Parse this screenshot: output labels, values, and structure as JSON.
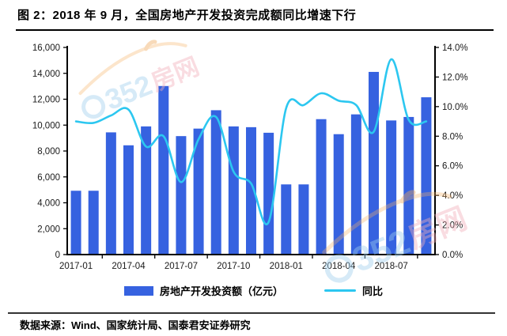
{
  "header": {
    "title": "图 2：2018 年 9 月，全国房地产开发投资完成额同比增速下行"
  },
  "footer": {
    "source": "数据来源：Wind、国家统计局、国泰君安证券研究"
  },
  "watermark": {
    "digits": "352",
    "cn": "房网"
  },
  "colors": {
    "bar": "#3662E0",
    "line": "#2CC7F0",
    "axis": "#000000",
    "tick_text": "#1a1a1a",
    "watermark_orange": "#f6b267",
    "watermark_blue": "#9ecfee",
    "watermark_pink": "#f2aeb8"
  },
  "chart_data": {
    "type": "bar+line",
    "title": "图 2：2018 年 9 月，全国房地产开发投资完成额同比增速下行",
    "categories": [
      "2017-01",
      "2017-02",
      "2017-03",
      "2017-04",
      "2017-05",
      "2017-06",
      "2017-07",
      "2017-08",
      "2017-09",
      "2017-10",
      "2017-11",
      "2017-12",
      "2018-01",
      "2018-02",
      "2018-03",
      "2018-04",
      "2018-05",
      "2018-06",
      "2018-07",
      "2018-08",
      "2018-09"
    ],
    "series": [
      {
        "name": "房地产开发投资额（亿元）",
        "type": "bar",
        "axis": "left",
        "values": [
          4930,
          4930,
          9440,
          8440,
          9900,
          13020,
          9150,
          9730,
          11150,
          9900,
          9840,
          9410,
          5420,
          5420,
          10460,
          9300,
          10830,
          14110,
          10360,
          10630,
          12150
        ]
      },
      {
        "name": "同比",
        "type": "line",
        "axis": "right",
        "values": [
          9.0,
          8.9,
          9.4,
          9.8,
          7.3,
          8.0,
          4.9,
          7.8,
          9.3,
          5.6,
          4.8,
          2.2,
          9.9,
          10.1,
          10.9,
          10.4,
          10.1,
          8.3,
          13.2,
          9.1,
          9.0
        ]
      }
    ],
    "y_left": {
      "min": 0,
      "max": 16000,
      "step": 2000,
      "tick_labels": [
        "0",
        "2,000",
        "4,000",
        "6,000",
        "8,000",
        "10,000",
        "12,000",
        "14,000",
        "16,000"
      ]
    },
    "y_right": {
      "min": 0,
      "max": 14,
      "step": 2,
      "tick_labels": [
        "0.0%",
        "2.0%",
        "4.0%",
        "6.0%",
        "8.0%",
        "10.0%",
        "12.0%",
        "14.0%"
      ]
    },
    "x_tick_labels": [
      "2017-01",
      "2017-04",
      "2017-07",
      "2017-10",
      "2018-01",
      "2018-04",
      "2018-07"
    ],
    "x_tick_indices": [
      0,
      3,
      6,
      9,
      12,
      15,
      18
    ],
    "grid": false,
    "legend_position": "bottom"
  }
}
